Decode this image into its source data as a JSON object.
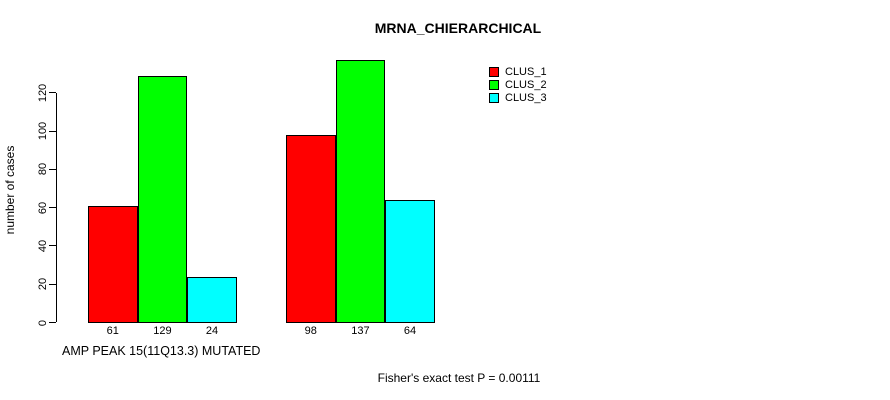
{
  "title": "MRNA_CHIERARCHICAL",
  "y_axis": {
    "label": "number of cases",
    "ticks": [
      "0",
      "20",
      "40",
      "60",
      "80",
      "100",
      "120"
    ]
  },
  "x_axis": {
    "label": "AMP PEAK 15(11Q13.3) MUTATED"
  },
  "footer": "Fisher's exact test P = 0.00111",
  "legend": {
    "items": [
      {
        "label": "CLUS_1",
        "color": "#ff0000"
      },
      {
        "label": "CLUS_2",
        "color": "#00ff00"
      },
      {
        "label": "CLUS_3",
        "color": "#00ffff"
      }
    ]
  },
  "chart_data": {
    "type": "bar",
    "title": "MRNA_CHIERARCHICAL",
    "xlabel": "AMP PEAK 15(11Q13.3) MUTATED",
    "ylabel": "number of cases",
    "annotation": "Fisher's exact test P = 0.00111",
    "group_count": 2,
    "series": [
      {
        "name": "CLUS_1",
        "color": "#ff0000",
        "values": [
          61,
          98
        ]
      },
      {
        "name": "CLUS_2",
        "color": "#00ff00",
        "values": [
          129,
          137
        ]
      },
      {
        "name": "CLUS_3",
        "color": "#00ffff",
        "values": [
          24,
          64
        ]
      }
    ],
    "value_labels": [
      [
        61,
        129,
        24
      ],
      [
        98,
        137,
        64
      ]
    ],
    "yticks": [
      0,
      20,
      40,
      60,
      80,
      100,
      120
    ],
    "ylim": [
      0,
      140
    ],
    "legend_position": "top-right",
    "grid": false,
    "bar_border_color": "#000000",
    "background_color": "#ffffff"
  }
}
